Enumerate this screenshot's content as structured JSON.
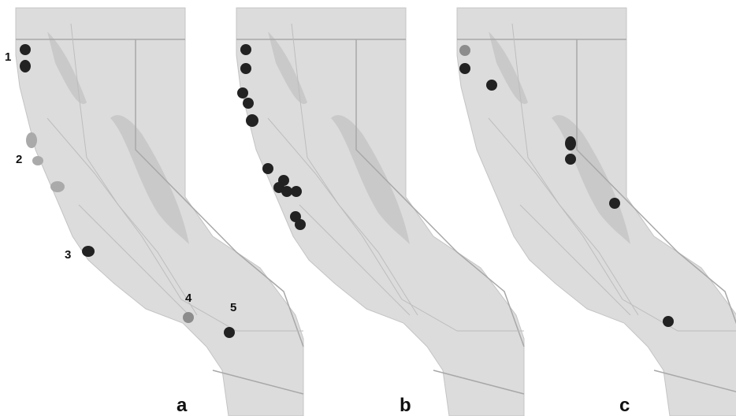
{
  "panels": [
    {
      "label": "a",
      "markers": [
        "1",
        "2",
        "3",
        "4",
        "5"
      ]
    },
    {
      "label": "b"
    },
    {
      "label": "c"
    }
  ]
}
